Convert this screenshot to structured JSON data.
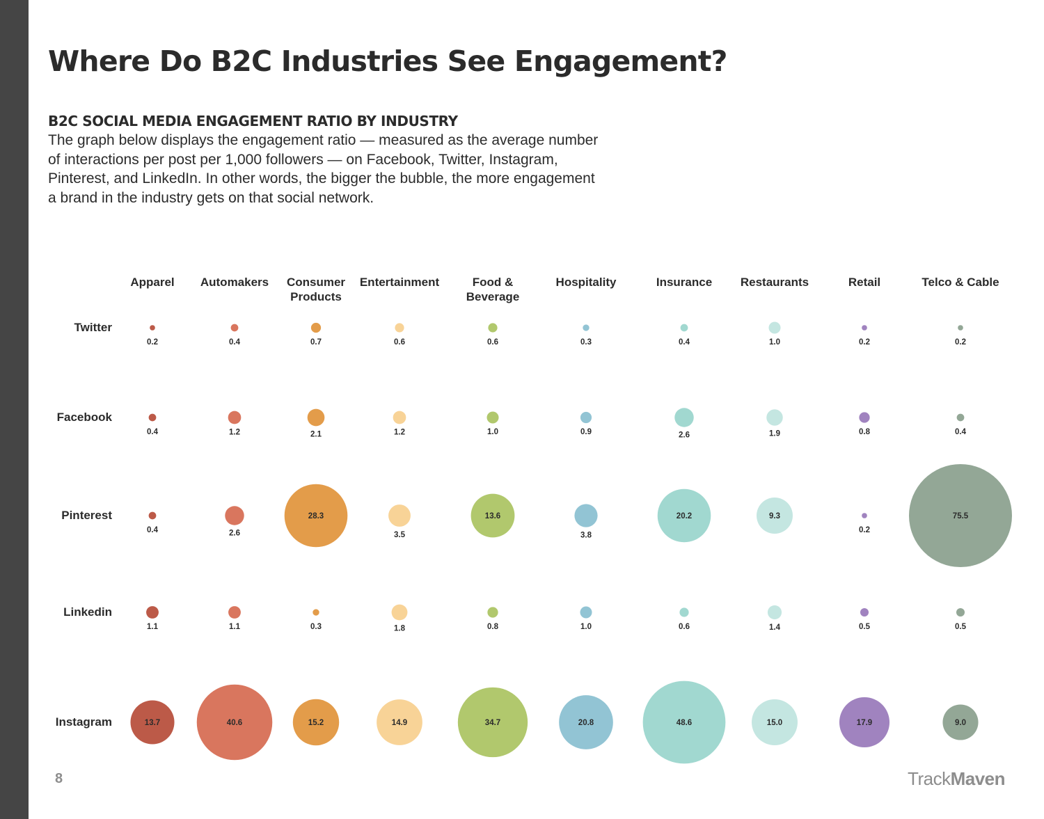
{
  "page": {
    "title": "Where Do B2C Industries See Engagement?",
    "section_heading": "B2C SOCIAL MEDIA ENGAGEMENT RATIO BY INDUSTRY",
    "description": "The graph below displays the engagement ratio — measured as the average number of interactions per post per 1,000 followers — on Facebook, Twitter, Instagram, Pinterest, and LinkedIn. In other words, the bigger the bubble, the more engagement a brand in the industry gets on that social network.",
    "page_number": "8",
    "logo": {
      "part1": "Track",
      "part2": "Maven"
    }
  },
  "chart_data": {
    "type": "bubble",
    "columns": [
      {
        "label": [
          "Apparel"
        ],
        "color": "#bc5a48"
      },
      {
        "label": [
          "Automakers"
        ],
        "color": "#d9765e"
      },
      {
        "label": [
          "Consumer",
          "Products"
        ],
        "color": "#e39c4a"
      },
      {
        "label": [
          "Entertainment"
        ],
        "color": "#f8d397"
      },
      {
        "label": [
          "Food &",
          "Beverage"
        ],
        "color": "#b1c86d"
      },
      {
        "label": [
          "Hospitality"
        ],
        "color": "#92c4d4"
      },
      {
        "label": [
          "Insurance"
        ],
        "color": "#a1d8d0"
      },
      {
        "label": [
          "Restaurants"
        ],
        "color": "#c4e6e1"
      },
      {
        "label": [
          "Retail"
        ],
        "color": "#a083bf"
      },
      {
        "label": [
          "Telco & Cable"
        ],
        "color": "#93a796"
      }
    ],
    "rows": [
      {
        "label": "Twitter",
        "values": [
          "0.2",
          "0.4",
          "0.7",
          "0.6",
          "0.6",
          "0.3",
          "0.4",
          "1.0",
          "0.2",
          "0.2"
        ]
      },
      {
        "label": "Facebook",
        "values": [
          "0.4",
          "1.2",
          "2.1",
          "1.2",
          "1.0",
          "0.9",
          "2.6",
          "1.9",
          "0.8",
          "0.4"
        ]
      },
      {
        "label": "Pinterest",
        "values": [
          "0.4",
          "2.6",
          "28.3",
          "3.5",
          "13.6",
          "3.8",
          "20.2",
          "9.3",
          "0.2",
          "75.5"
        ]
      },
      {
        "label": "Linkedin",
        "values": [
          "1.1",
          "1.1",
          "0.3",
          "1.8",
          "0.8",
          "1.0",
          "0.6",
          "1.4",
          "0.5",
          "0.5"
        ]
      },
      {
        "label": "Instagram",
        "values": [
          "13.7",
          "40.6",
          "15.2",
          "14.9",
          "34.7",
          "20.8",
          "48.6",
          "15.0",
          "17.9",
          "9.0"
        ]
      }
    ]
  }
}
